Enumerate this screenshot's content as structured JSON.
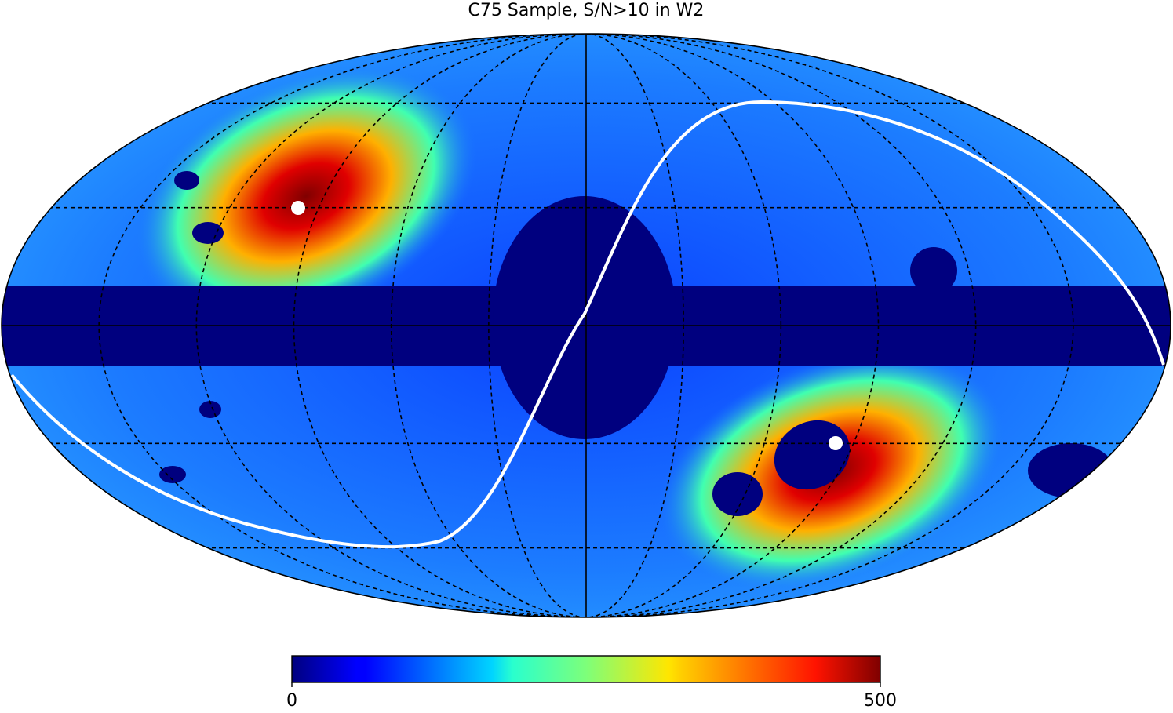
{
  "chart_data": {
    "type": "mollweide",
    "title": "C75 Sample, S/N>10 in W2",
    "colormap": "jet",
    "clim": [
      0,
      500
    ],
    "cticks": [
      0,
      500
    ],
    "graticule": true
  }
}
